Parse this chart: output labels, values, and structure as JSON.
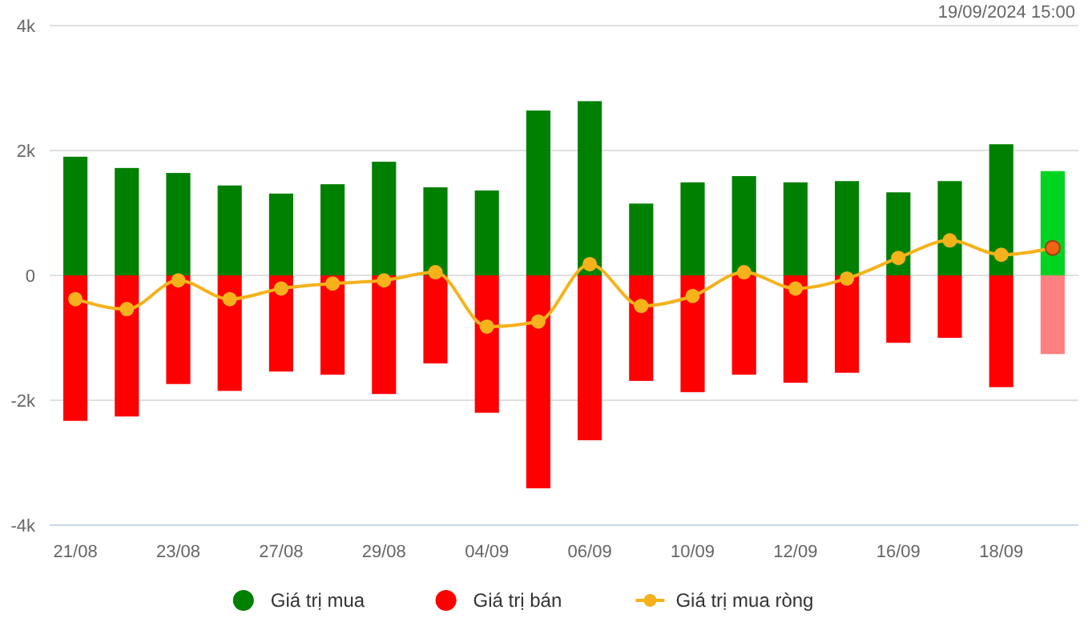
{
  "chart_data": {
    "type": "bar",
    "annotations": [
      "19/09/2024 15:00"
    ],
    "categories": [
      "21/08",
      null,
      "23/08",
      null,
      "27/08",
      null,
      "29/08",
      null,
      "04/09",
      null,
      "06/09",
      null,
      "10/09",
      null,
      "12/09",
      null,
      "16/09",
      null,
      "18/09",
      null
    ],
    "series": [
      {
        "name": "Giá trị mua",
        "color": "#008000",
        "colors": [
          "#008000",
          "#008000",
          "#008000",
          "#008000",
          "#008000",
          "#008000",
          "#008000",
          "#008000",
          "#008000",
          "#008000",
          "#008000",
          "#008000",
          "#008000",
          "#008000",
          "#008000",
          "#008000",
          "#008000",
          "#008000",
          "#008000",
          "#00d420"
        ],
        "values": [
          1.9,
          1.72,
          1.64,
          1.44,
          1.31,
          1.46,
          1.82,
          1.41,
          1.36,
          2.64,
          2.79,
          1.15,
          1.49,
          1.59,
          1.49,
          1.51,
          1.33,
          1.51,
          2.1,
          1.67
        ]
      },
      {
        "name": "Giá trị bán",
        "color": "#ff0000",
        "colors": [
          "#ff0000",
          "#ff0000",
          "#ff0000",
          "#ff0000",
          "#ff0000",
          "#ff0000",
          "#ff0000",
          "#ff0000",
          "#ff0000",
          "#ff0000",
          "#ff0000",
          "#ff0000",
          "#ff0000",
          "#ff0000",
          "#ff0000",
          "#ff0000",
          "#ff0000",
          "#ff0000",
          "#ff0000",
          "#ff8080"
        ],
        "values": [
          -2.33,
          -2.26,
          -1.74,
          -1.85,
          -1.54,
          -1.59,
          -1.9,
          -1.41,
          -2.2,
          -3.41,
          -2.64,
          -1.69,
          -1.87,
          -1.59,
          -1.72,
          -1.56,
          -1.08,
          -1.0,
          -1.79,
          -1.26
        ]
      },
      {
        "name": "Giá trị mua ròng",
        "type": "line",
        "color": "#f5b21b",
        "colors": [
          "#f5b21b",
          "#f5b21b",
          "#f5b21b",
          "#f5b21b",
          "#f5b21b",
          "#f5b21b",
          "#f5b21b",
          "#f5b21b",
          "#f5b21b",
          "#f5b21b",
          "#f5b21b",
          "#f5b21b",
          "#f5b21b",
          "#f5b21b",
          "#f5b21b",
          "#f5b21b",
          "#f5b21b",
          "#f5b21b",
          "#f5b21b",
          "#f06414"
        ],
        "values": [
          -0.38,
          -0.54,
          -0.08,
          -0.38,
          -0.21,
          -0.13,
          -0.08,
          0.05,
          -0.82,
          -0.74,
          0.18,
          -0.49,
          -0.33,
          0.05,
          -0.21,
          -0.05,
          0.28,
          0.56,
          0.33,
          0.44
        ]
      }
    ],
    "ylim": [
      -4,
      4
    ],
    "yticks": [
      {
        "value": -4,
        "label": "-4k"
      },
      {
        "value": -2,
        "label": "-2k"
      },
      0,
      {
        "value": 2,
        "label": "2k"
      },
      {
        "value": 4,
        "label": "4k"
      }
    ],
    "grid": "y",
    "legend": "bottom",
    "marker": "circle",
    "stacked": true
  }
}
